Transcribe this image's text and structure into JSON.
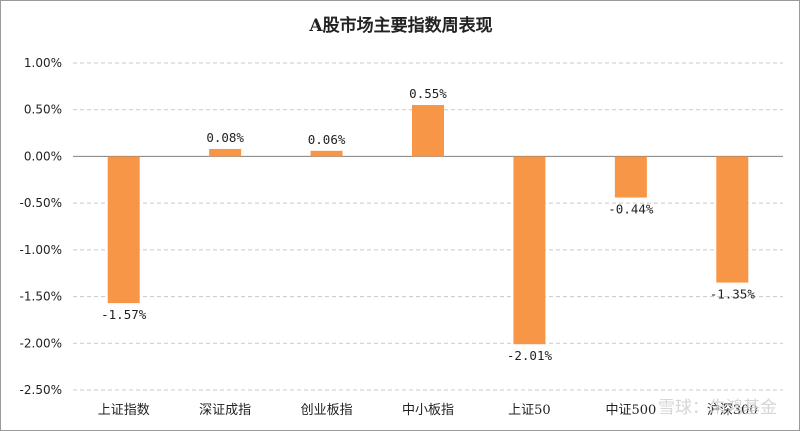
{
  "chart_data": {
    "type": "bar",
    "title": "A股市场主要指数周表现",
    "categories": [
      "上证指数",
      "深证成指",
      "创业板指",
      "中小板指",
      "上证50",
      "中证500",
      "沪深300"
    ],
    "values": [
      -1.57,
      0.08,
      0.06,
      0.55,
      -2.01,
      -0.44,
      -1.35
    ],
    "data_labels": [
      "-1.57%",
      "0.08%",
      "0.06%",
      "0.55%",
      "-2.01%",
      "-0.44%",
      "-1.35%"
    ],
    "ylim": [
      -2.5,
      1.0
    ],
    "yticks": [
      1.0,
      0.5,
      0.0,
      -0.5,
      -1.0,
      -1.5,
      -2.0,
      -2.5
    ],
    "ytick_labels": [
      "1.00%",
      "0.50%",
      "0.00%",
      "-0.50%",
      "-1.00%",
      "-1.50%",
      "-2.00%",
      "-2.50%"
    ],
    "grid": true,
    "legend": "none",
    "bar_color": "#F79646"
  },
  "watermark": "雪球：朱鸿基金"
}
